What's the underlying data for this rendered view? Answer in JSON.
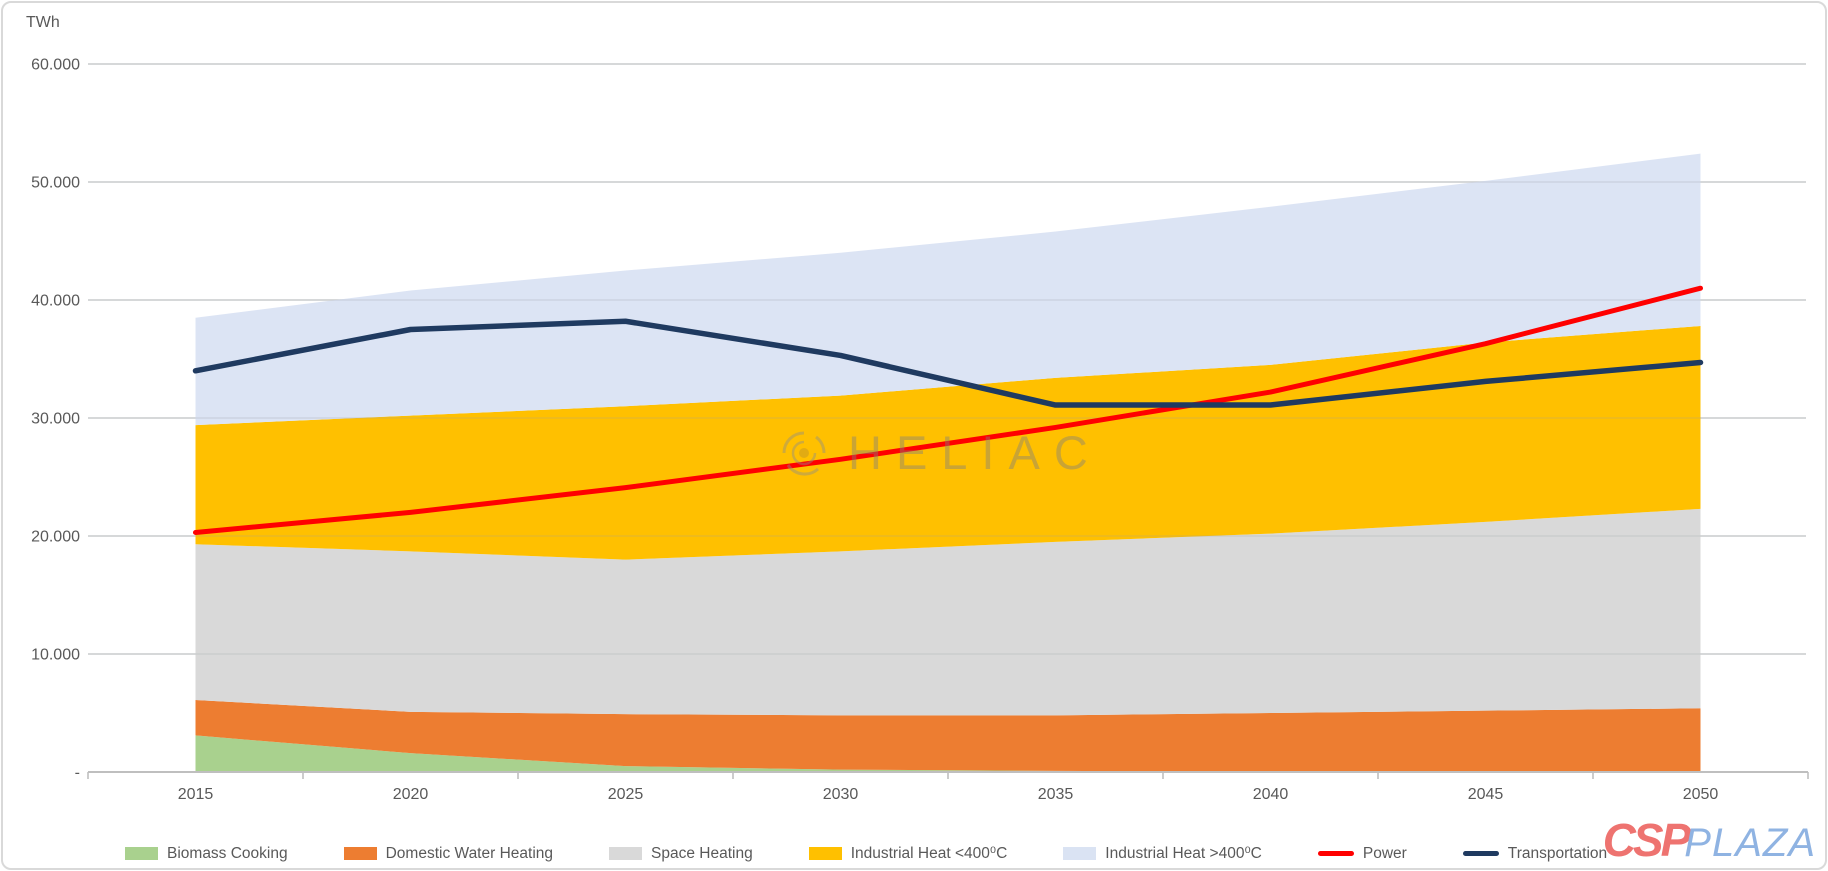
{
  "unit_label": "TWh",
  "watermark": {
    "text": "HELIAC"
  },
  "logo": {
    "part1": "CSP",
    "part2": "PLAZA"
  },
  "axis_colors": {
    "text": "#595959",
    "gridline": "#d9d9d9",
    "axis_line": "#bfbfbf"
  },
  "chart_data": {
    "type": "area",
    "stacked": true,
    "title": "",
    "ylabel": "TWh",
    "xlabel": "",
    "ylim": [
      0,
      60000
    ],
    "grid": true,
    "legend_position": "bottom",
    "categories": [
      "2015",
      "2020",
      "2025",
      "2030",
      "2035",
      "2040",
      "2045",
      "2050"
    ],
    "y_ticks": [
      {
        "value": 60000,
        "label": "60.000"
      },
      {
        "value": 50000,
        "label": "50.000"
      },
      {
        "value": 40000,
        "label": "40.000"
      },
      {
        "value": 30000,
        "label": "30.000"
      },
      {
        "value": 20000,
        "label": "20.000"
      },
      {
        "value": 10000,
        "label": "10.000"
      },
      {
        "value": 0,
        "label": "-"
      }
    ],
    "series": [
      {
        "name": "Biomass Cooking",
        "kind": "area",
        "color": "#a9d18e",
        "values": [
          3100,
          1600,
          500,
          200,
          100,
          0,
          0,
          0
        ]
      },
      {
        "name": "Domestic Water Heating",
        "kind": "area",
        "color": "#ed7d31",
        "values": [
          3000,
          3500,
          4400,
          4600,
          4700,
          5000,
          5200,
          5400
        ]
      },
      {
        "name": "Space Heating",
        "kind": "area",
        "color": "#d9d9d9",
        "values": [
          13200,
          13600,
          13100,
          13900,
          14700,
          15200,
          16000,
          16900
        ]
      },
      {
        "name": "Industrial Heat <400⁰C",
        "kind": "area",
        "color": "#ffc000",
        "values": [
          10100,
          11500,
          13000,
          13200,
          13900,
          14300,
          15200,
          15500
        ]
      },
      {
        "name": "Industrial Heat >400⁰C",
        "kind": "area",
        "color": "#dae3f3",
        "values": [
          9100,
          10600,
          11500,
          12100,
          12400,
          13400,
          13700,
          14600
        ]
      },
      {
        "name": "Power",
        "kind": "line",
        "color": "#ff0000",
        "width": 5,
        "values": [
          20300,
          22000,
          24100,
          26500,
          29200,
          32200,
          36300,
          41000
        ]
      },
      {
        "name": "Transportation",
        "kind": "line",
        "color": "#1f3a60",
        "width": 5.5,
        "values": [
          34000,
          37500,
          38200,
          35300,
          31100,
          31100,
          33100,
          34700
        ]
      }
    ]
  }
}
